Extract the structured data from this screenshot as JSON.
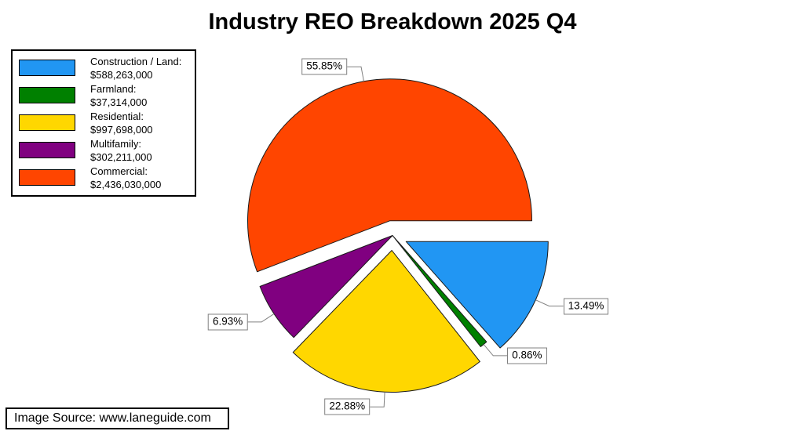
{
  "title": "Industry REO Breakdown 2025 Q4",
  "source_note": "Image Source: www.laneguide.com",
  "chart_data": {
    "type": "pie",
    "title": "Industry REO Breakdown 2025 Q4",
    "units": "USD",
    "start_angle_deg": 0,
    "direction": "clockwise",
    "legend_position": "top-left",
    "label_style": "percent-callout-boxes",
    "slices": [
      {
        "label": "Construction / Land",
        "label_text": "Construction / Land:",
        "value": 588263000,
        "value_text": "$588,263,000",
        "pct": 13.49,
        "pct_text": "13.49%",
        "color": "#2196F3",
        "exploded": true
      },
      {
        "label": "Farmland",
        "label_text": "Farmland:",
        "value": 37314000,
        "value_text": "$37,314,000",
        "pct": 0.86,
        "pct_text": "0.86%",
        "color": "#008000",
        "exploded": false
      },
      {
        "label": "Residential",
        "label_text": "Residential:",
        "value": 997698000,
        "value_text": "$997,698,000",
        "pct": 22.88,
        "pct_text": "22.88%",
        "color": "#FFD700",
        "exploded": true
      },
      {
        "label": "Multifamily",
        "label_text": "Multifamily:",
        "value": 302211000,
        "value_text": "$302,211,000",
        "pct": 6.93,
        "pct_text": "6.93%",
        "color": "#800080",
        "exploded": false
      },
      {
        "label": "Commercial",
        "label_text": "Commercial:",
        "value": 2436030000,
        "value_text": "$2,436,030,000",
        "pct": 55.85,
        "pct_text": "55.85%",
        "color": "#FF4500",
        "exploded": true
      }
    ]
  }
}
